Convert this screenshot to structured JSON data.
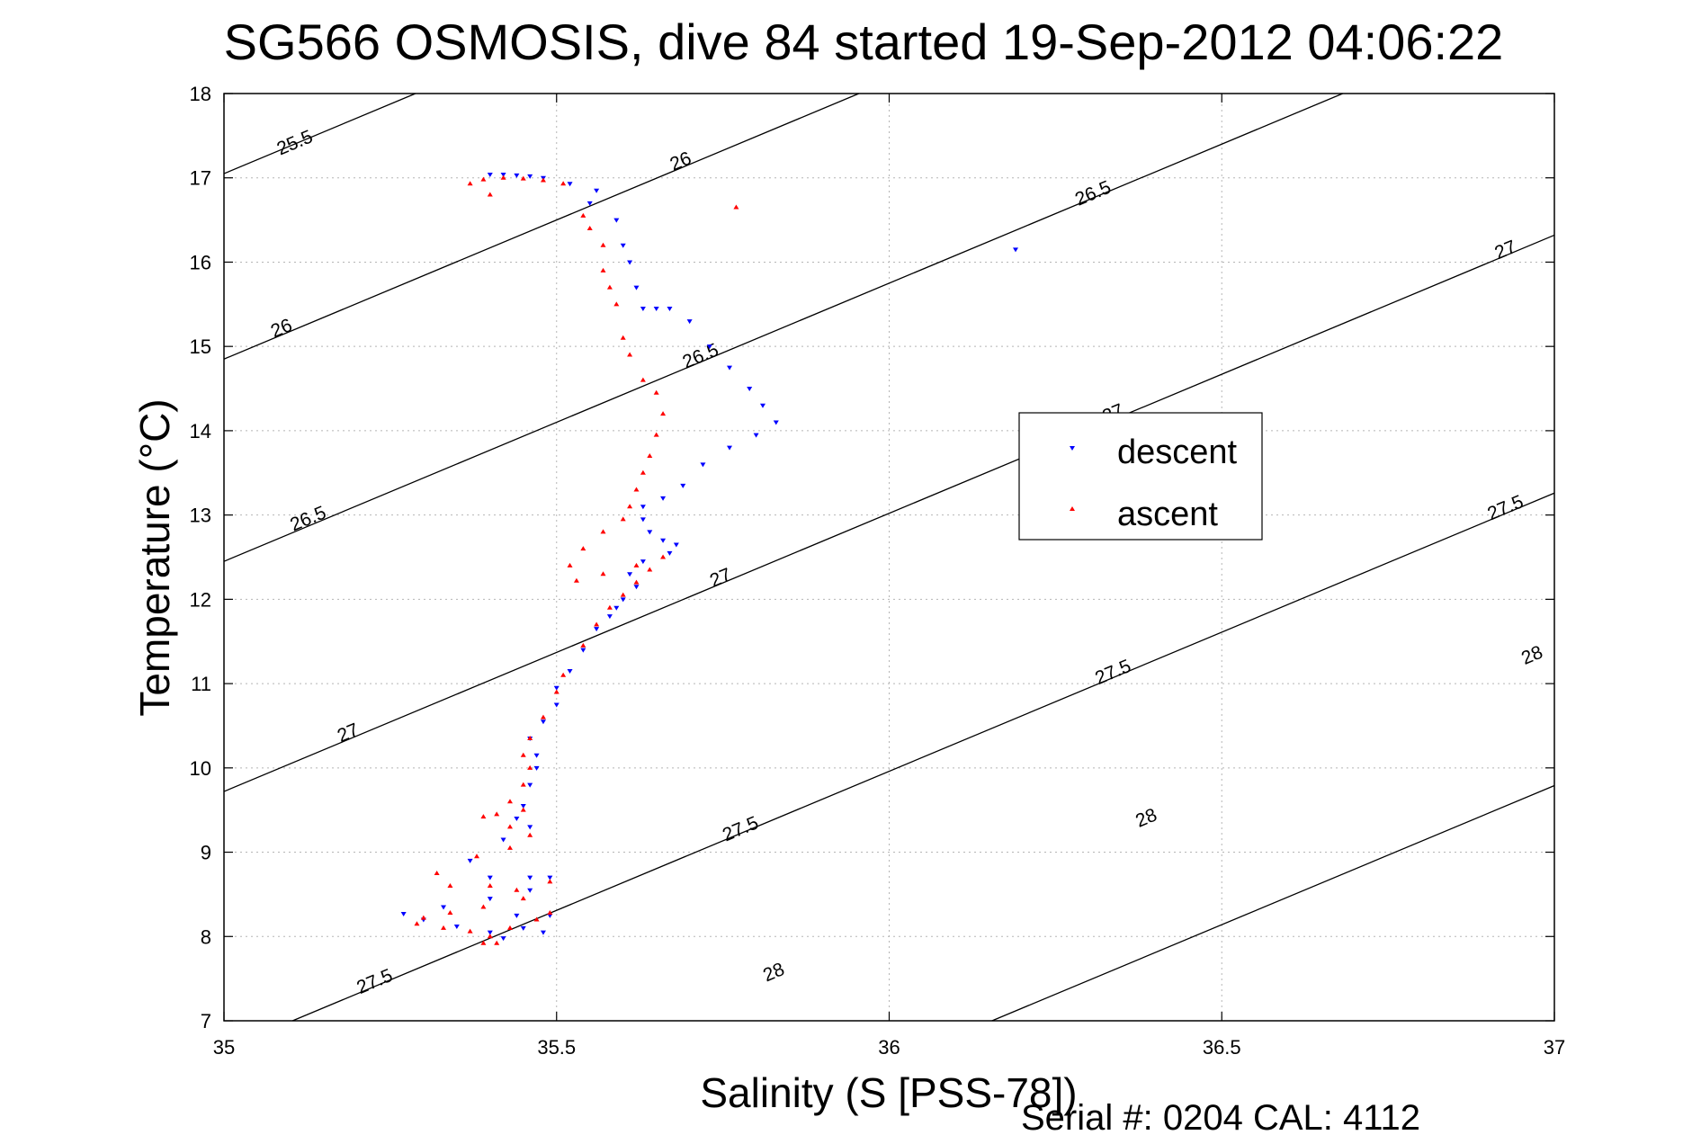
{
  "chart_data": {
    "type": "scatter",
    "title": "SG566 OSMOSIS, dive 84 started 19-Sep-2012 04:06:22",
    "xlabel": "Salinity (S [PSS-78])",
    "ylabel": "Temperature (°C)",
    "xlim": [
      35,
      37
    ],
    "ylim": [
      7,
      18
    ],
    "xticks": [
      "35",
      "35.5",
      "36",
      "36.5",
      "37"
    ],
    "yticks": [
      "7",
      "8",
      "9",
      "10",
      "11",
      "12",
      "13",
      "14",
      "15",
      "16",
      "17",
      "18"
    ],
    "grid": true,
    "legend_position": "right-center",
    "density_contours": {
      "slope_temp_per_psu": 3.3,
      "lines": [
        {
          "label": "25.5",
          "t_at_35": 17.05,
          "label_positions": [
            [
              35.11,
              17.35
            ]
          ]
        },
        {
          "label": "26",
          "t_at_35": 14.85,
          "label_positions": [
            [
              35.09,
              15.15
            ],
            [
              35.69,
              17.13
            ]
          ]
        },
        {
          "label": "26.5",
          "t_at_35": 12.45,
          "label_positions": [
            [
              35.13,
              12.89
            ],
            [
              35.72,
              14.82
            ],
            [
              36.31,
              16.75
            ]
          ]
        },
        {
          "label": "27",
          "t_at_35": 9.72,
          "label_positions": [
            [
              35.19,
              10.35
            ],
            [
              35.75,
              12.19
            ],
            [
              36.34,
              14.14
            ],
            [
              36.93,
              16.08
            ]
          ]
        },
        {
          "label": "27.5",
          "t_at_35": 6.66,
          "label_positions": [
            [
              35.23,
              7.4
            ],
            [
              35.78,
              9.21
            ],
            [
              36.34,
              11.07
            ],
            [
              36.93,
              13.02
            ]
          ]
        },
        {
          "label": "28",
          "t_at_35": 3.19,
          "label_positions": [
            [
              35.83,
              7.51
            ],
            [
              36.39,
              9.34
            ],
            [
              36.97,
              11.27
            ]
          ]
        }
      ]
    },
    "series": [
      {
        "name": "descent",
        "color": "#0000ff",
        "marker": "triangle-down",
        "points": [
          [
            35.4,
            17.04
          ],
          [
            35.42,
            17.04
          ],
          [
            35.44,
            17.03
          ],
          [
            35.46,
            17.02
          ],
          [
            35.48,
            17.0
          ],
          [
            35.52,
            16.93
          ],
          [
            35.56,
            16.85
          ],
          [
            35.55,
            16.7
          ],
          [
            35.59,
            16.5
          ],
          [
            35.6,
            16.2
          ],
          [
            35.61,
            16.0
          ],
          [
            35.62,
            15.7
          ],
          [
            35.63,
            15.45
          ],
          [
            35.65,
            15.45
          ],
          [
            35.67,
            15.45
          ],
          [
            35.7,
            15.3
          ],
          [
            35.73,
            15.0
          ],
          [
            35.76,
            14.75
          ],
          [
            35.79,
            14.5
          ],
          [
            35.81,
            14.3
          ],
          [
            35.83,
            14.1
          ],
          [
            35.8,
            13.95
          ],
          [
            35.76,
            13.8
          ],
          [
            35.72,
            13.6
          ],
          [
            35.69,
            13.35
          ],
          [
            35.66,
            13.2
          ],
          [
            35.63,
            13.1
          ],
          [
            35.63,
            12.95
          ],
          [
            35.64,
            12.8
          ],
          [
            35.66,
            12.7
          ],
          [
            35.68,
            12.65
          ],
          [
            35.67,
            12.55
          ],
          [
            35.63,
            12.45
          ],
          [
            35.61,
            12.3
          ],
          [
            35.62,
            12.15
          ],
          [
            35.6,
            12.0
          ],
          [
            35.59,
            11.9
          ],
          [
            35.58,
            11.8
          ],
          [
            35.56,
            11.65
          ],
          [
            35.54,
            11.4
          ],
          [
            35.52,
            11.15
          ],
          [
            35.5,
            10.95
          ],
          [
            35.5,
            10.75
          ],
          [
            35.48,
            10.55
          ],
          [
            35.46,
            10.35
          ],
          [
            35.47,
            10.15
          ],
          [
            35.47,
            10.0
          ],
          [
            35.46,
            9.8
          ],
          [
            35.45,
            9.55
          ],
          [
            35.44,
            9.4
          ],
          [
            35.46,
            9.3
          ],
          [
            35.42,
            9.15
          ],
          [
            35.37,
            8.9
          ],
          [
            35.4,
            8.7
          ],
          [
            35.46,
            8.7
          ],
          [
            35.49,
            8.7
          ],
          [
            35.46,
            8.55
          ],
          [
            35.4,
            8.45
          ],
          [
            35.33,
            8.35
          ],
          [
            35.27,
            8.27
          ],
          [
            35.3,
            8.2
          ],
          [
            35.35,
            8.12
          ],
          [
            35.4,
            8.05
          ],
          [
            35.42,
            7.98
          ],
          [
            35.45,
            8.1
          ],
          [
            35.44,
            8.25
          ],
          [
            35.49,
            8.25
          ],
          [
            35.48,
            8.05
          ],
          [
            36.19,
            16.15
          ]
        ]
      },
      {
        "name": "ascent",
        "color": "#ff0000",
        "marker": "triangle-up",
        "points": [
          [
            35.37,
            16.93
          ],
          [
            35.39,
            16.98
          ],
          [
            35.42,
            17.0
          ],
          [
            35.45,
            16.99
          ],
          [
            35.48,
            16.97
          ],
          [
            35.51,
            16.93
          ],
          [
            35.4,
            16.8
          ],
          [
            35.54,
            16.55
          ],
          [
            35.55,
            16.4
          ],
          [
            35.57,
            16.2
          ],
          [
            35.57,
            15.9
          ],
          [
            35.58,
            15.7
          ],
          [
            35.59,
            15.5
          ],
          [
            35.6,
            15.1
          ],
          [
            35.61,
            14.9
          ],
          [
            35.63,
            14.6
          ],
          [
            35.65,
            14.45
          ],
          [
            35.66,
            14.2
          ],
          [
            35.65,
            13.95
          ],
          [
            35.64,
            13.7
          ],
          [
            35.63,
            13.5
          ],
          [
            35.62,
            13.3
          ],
          [
            35.61,
            13.1
          ],
          [
            35.6,
            12.95
          ],
          [
            35.57,
            12.8
          ],
          [
            35.54,
            12.6
          ],
          [
            35.52,
            12.4
          ],
          [
            35.53,
            12.22
          ],
          [
            35.57,
            12.3
          ],
          [
            35.62,
            12.4
          ],
          [
            35.66,
            12.5
          ],
          [
            35.64,
            12.35
          ],
          [
            35.62,
            12.2
          ],
          [
            35.6,
            12.05
          ],
          [
            35.58,
            11.9
          ],
          [
            35.56,
            11.7
          ],
          [
            35.54,
            11.45
          ],
          [
            35.51,
            11.1
          ],
          [
            35.5,
            10.9
          ],
          [
            35.48,
            10.6
          ],
          [
            35.46,
            10.35
          ],
          [
            35.45,
            10.15
          ],
          [
            35.46,
            10.0
          ],
          [
            35.45,
            9.8
          ],
          [
            35.43,
            9.6
          ],
          [
            35.45,
            9.5
          ],
          [
            35.41,
            9.45
          ],
          [
            35.39,
            9.42
          ],
          [
            35.43,
            9.3
          ],
          [
            35.46,
            9.2
          ],
          [
            35.43,
            9.05
          ],
          [
            35.38,
            8.95
          ],
          [
            35.32,
            8.75
          ],
          [
            35.34,
            8.6
          ],
          [
            35.4,
            8.6
          ],
          [
            35.44,
            8.55
          ],
          [
            35.49,
            8.65
          ],
          [
            35.45,
            8.45
          ],
          [
            35.39,
            8.35
          ],
          [
            35.34,
            8.28
          ],
          [
            35.3,
            8.22
          ],
          [
            35.29,
            8.15
          ],
          [
            35.33,
            8.1
          ],
          [
            35.37,
            8.06
          ],
          [
            35.4,
            8.0
          ],
          [
            35.43,
            8.1
          ],
          [
            35.47,
            8.2
          ],
          [
            35.49,
            8.28
          ],
          [
            35.39,
            7.92
          ],
          [
            35.41,
            7.92
          ],
          [
            35.77,
            16.65
          ]
        ]
      }
    ],
    "legend": [
      "descent",
      "ascent"
    ],
    "annotation": "Serial #: 0204  CAL: 4112"
  }
}
